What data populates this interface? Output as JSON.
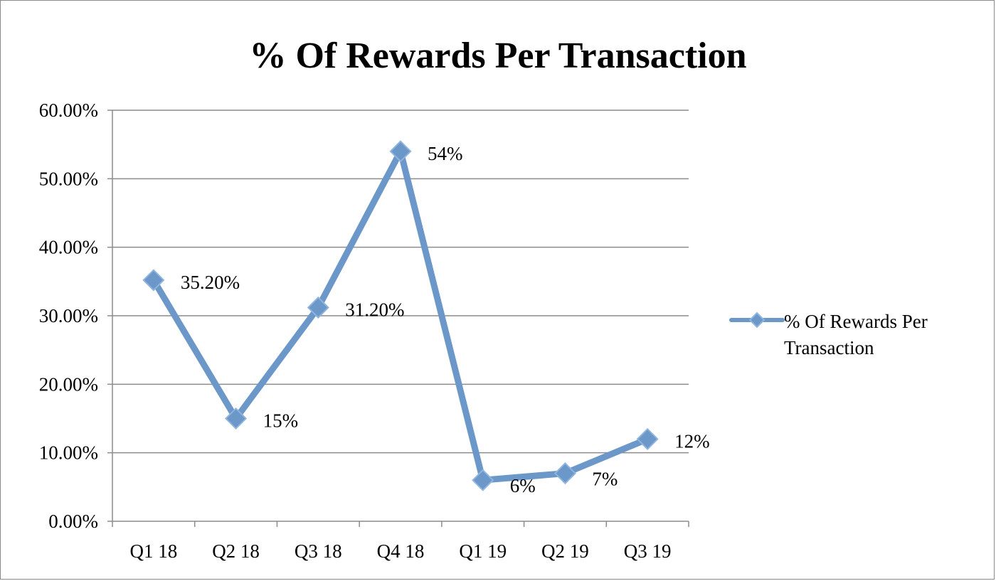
{
  "chart_data": {
    "type": "line",
    "title": "% Of Rewards Per Transaction",
    "categories": [
      "Q1 18",
      "Q2 18",
      "Q3 18",
      "Q4 18",
      "Q1 19",
      "Q2 19",
      "Q3 19"
    ],
    "series": [
      {
        "name": "% Of Rewards Per Transaction",
        "values": [
          0.352,
          0.15,
          0.312,
          0.54,
          0.06,
          0.07,
          0.12
        ],
        "data_labels": [
          "35.20%",
          "15%",
          "31.20%",
          "54%",
          "6%",
          "7%",
          "12%"
        ],
        "color": "#6b97c9",
        "marker": "diamond"
      }
    ],
    "ylim": [
      0,
      0.6
    ],
    "yticks": [
      0,
      0.1,
      0.2,
      0.3,
      0.4,
      0.5,
      0.6
    ],
    "ytick_labels": [
      "0.00%",
      "10.00%",
      "20.00%",
      "30.00%",
      "40.00%",
      "50.00%",
      "60.00%"
    ],
    "xlabel": "",
    "ylabel": "",
    "grid": "horizontal",
    "legend_position": "right",
    "legend_lines": [
      "% Of Rewards Per",
      "Transaction"
    ]
  }
}
